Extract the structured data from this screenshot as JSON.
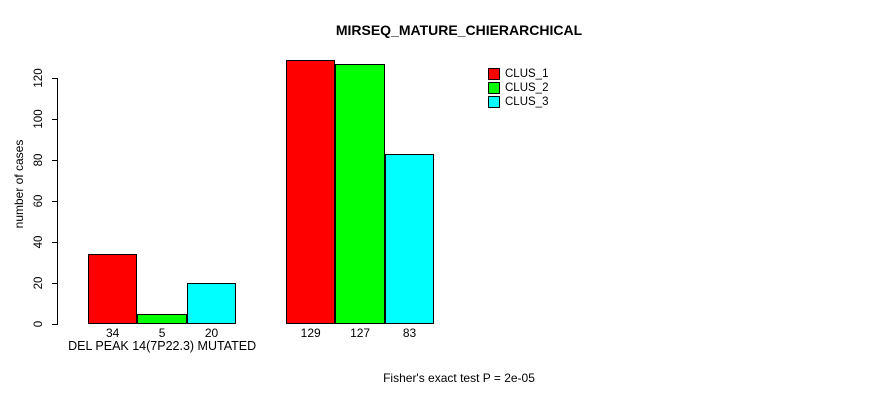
{
  "chart_data": {
    "type": "bar",
    "title": "MIRSEQ_MATURE_CHIERARCHICAL",
    "ylabel": "number of cases",
    "xlabel": "",
    "categories": [
      "DEL PEAK 14(7P22.3) MUTATED",
      ""
    ],
    "series": [
      {
        "name": "CLUS_1",
        "color": "#ff0000",
        "values": [
          34,
          129
        ]
      },
      {
        "name": "CLUS_2",
        "color": "#00ff00",
        "values": [
          5,
          127
        ]
      },
      {
        "name": "CLUS_3",
        "color": "#00ffff",
        "values": [
          20,
          83
        ]
      }
    ],
    "yticks": [
      0,
      20,
      40,
      60,
      80,
      100,
      120
    ],
    "ylim": [
      0,
      130
    ],
    "grid": false,
    "bar_value_labels_shown": true,
    "legend_position": "top-right",
    "annotation": "Fisher's exact test P = 2e-05"
  },
  "colors": {
    "background": "#ffffff",
    "text": "#000000",
    "axis": "#000000",
    "bar_border": "#000000"
  }
}
